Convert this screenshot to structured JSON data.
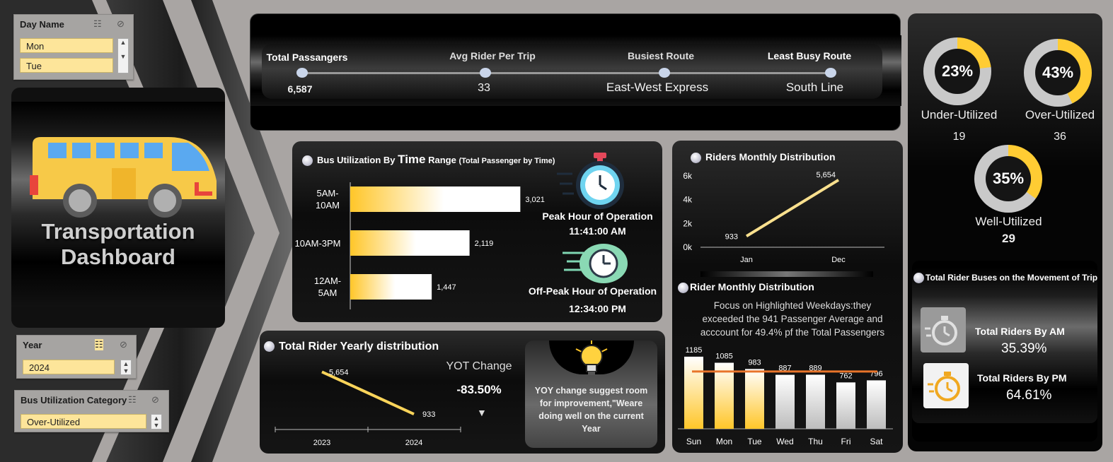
{
  "slicers": {
    "day": {
      "title": "Day Name",
      "items": [
        "Mon",
        "Tue"
      ]
    },
    "year": {
      "title": "Year",
      "items": [
        "2024"
      ]
    },
    "util": {
      "title": "Bus Utilization Category",
      "items": [
        "Over-Utilized"
      ]
    }
  },
  "brand": {
    "line1": "Transportation",
    "line2": "Dashboard"
  },
  "kpis": [
    {
      "label": "Total Passangers",
      "value": "6,587"
    },
    {
      "label": "Avg Rider Per Trip",
      "value": "33"
    },
    {
      "label": "Busiest Route",
      "value": "East-West Express"
    },
    {
      "label": "Least Busy Route",
      "value": "South Line"
    }
  ],
  "time_range": {
    "title": "Bus Utilization By ",
    "title_big": "Time",
    "title_mid": " Range ",
    "title_small": "(Total Passenger by Time)",
    "peak_label": "Peak Hour of Operation",
    "peak_value": "11:41:00 AM",
    "offpeak_label": "Off-Peak Hour of Operation",
    "offpeak_value": "12:34:00 PM"
  },
  "monthly": {
    "title": "Riders Monthly Distribution"
  },
  "weekday": {
    "title": "Rider Monthly Distribution",
    "note": "Focus on Highlighted Weekdays:they exceeded the 941 Passenger Average and acccount for 49.4% pf the Total Passengers"
  },
  "yearly": {
    "title": "Total Rider Yearly distribution",
    "yot_label": "YOT Change",
    "yot_value": "-83.50%",
    "tip": "YOY change suggest room for improvement,\"Weare doing well on the current Year"
  },
  "utilization": [
    {
      "pct": "23%",
      "label": "Under-Utilized",
      "count": "19",
      "fraction": 0.23
    },
    {
      "pct": "43%",
      "label": "Over-Utilized",
      "count": "36",
      "fraction": 0.43
    },
    {
      "pct": "35%",
      "label": "Well-Utilized",
      "count": "29",
      "fraction": 0.35
    }
  ],
  "movement": {
    "title": "Total Rider Buses on the Movement of Trip",
    "am_label": "Total Riders By AM",
    "am_value": "35.39%",
    "pm_label": "Total Riders By PM",
    "pm_value": "64.61%"
  },
  "colors": {
    "accent": "#ffcc33",
    "accent_light": "#fde59a",
    "panel": "#111111"
  },
  "chart_data": [
    {
      "type": "bar",
      "orientation": "horizontal",
      "categories": [
        "5AM-10AM",
        "10AM-3PM",
        "12AM-5AM"
      ],
      "values": [
        3021,
        2119,
        1447
      ],
      "data_labels": [
        "3,021",
        "2,119",
        "1,447"
      ],
      "xlim": [
        0,
        3500
      ]
    },
    {
      "type": "line",
      "x": [
        "Jan",
        "Dec"
      ],
      "values": [
        933,
        5654
      ],
      "data_labels": [
        "933",
        "5,654"
      ],
      "y_ticks": [
        "0k",
        "2k",
        "4k",
        "6k"
      ],
      "ylim": [
        0,
        6000
      ]
    },
    {
      "type": "bar",
      "categories": [
        "Sun",
        "Mon",
        "Tue",
        "Wed",
        "Thu",
        "Fri",
        "Sat"
      ],
      "values": [
        1185,
        1085,
        983,
        887,
        889,
        762,
        796
      ],
      "highlighted": [
        true,
        true,
        true,
        false,
        false,
        false,
        false
      ],
      "average": 941,
      "ylim": [
        0,
        1300
      ]
    },
    {
      "type": "line",
      "x": [
        "2023",
        "2024"
      ],
      "values": [
        5654,
        933
      ],
      "data_labels": [
        "5,654",
        "933"
      ],
      "ylim": [
        0,
        6000
      ]
    }
  ]
}
